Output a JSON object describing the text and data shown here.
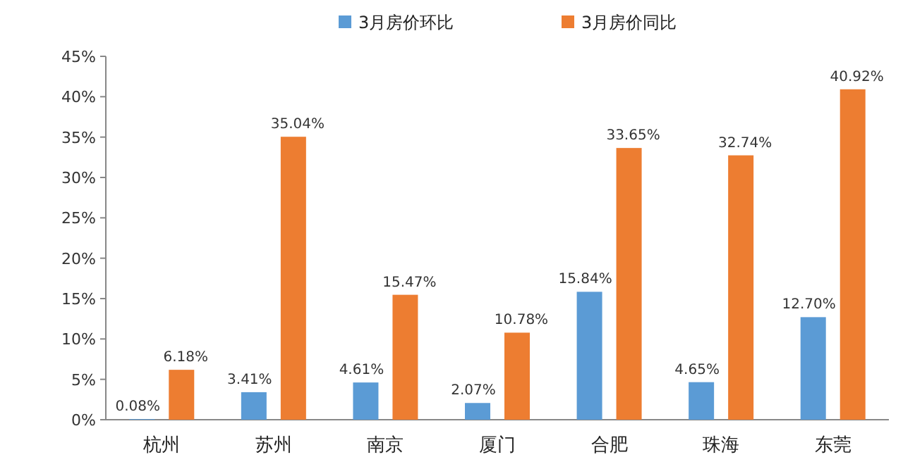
{
  "chart_data": {
    "type": "bar",
    "categories": [
      "杭州",
      "苏州",
      "南京",
      "厦门",
      "合肥",
      "珠海",
      "东莞"
    ],
    "series": [
      {
        "name": "3月房价环比",
        "color": "#5b9bd5",
        "values": [
          0.08,
          3.41,
          4.61,
          2.07,
          15.84,
          4.65,
          12.7
        ],
        "value_labels": [
          "0.08%",
          "3.41%",
          "4.61%",
          "2.07%",
          "15.84%",
          "4.65%",
          "12.70%"
        ]
      },
      {
        "name": "3月房价同比",
        "color": "#ed7d31",
        "values": [
          6.18,
          35.04,
          15.47,
          10.78,
          33.65,
          32.74,
          40.92
        ],
        "value_labels": [
          "6.18%",
          "35.04%",
          "15.47%",
          "10.78%",
          "33.65%",
          "32.74%",
          "40.92%"
        ]
      }
    ],
    "ylim": [
      0,
      45
    ],
    "yticks": [
      {
        "value": 0,
        "label": "0%"
      },
      {
        "value": 5,
        "label": "5%"
      },
      {
        "value": 10,
        "label": "10%"
      },
      {
        "value": 15,
        "label": "15%"
      },
      {
        "value": 20,
        "label": "20%"
      },
      {
        "value": 25,
        "label": "25%"
      },
      {
        "value": 30,
        "label": "30%"
      },
      {
        "value": 35,
        "label": "35%"
      },
      {
        "value": 40,
        "label": "40%"
      },
      {
        "value": 45,
        "label": "45%"
      }
    ],
    "legend": "top"
  }
}
